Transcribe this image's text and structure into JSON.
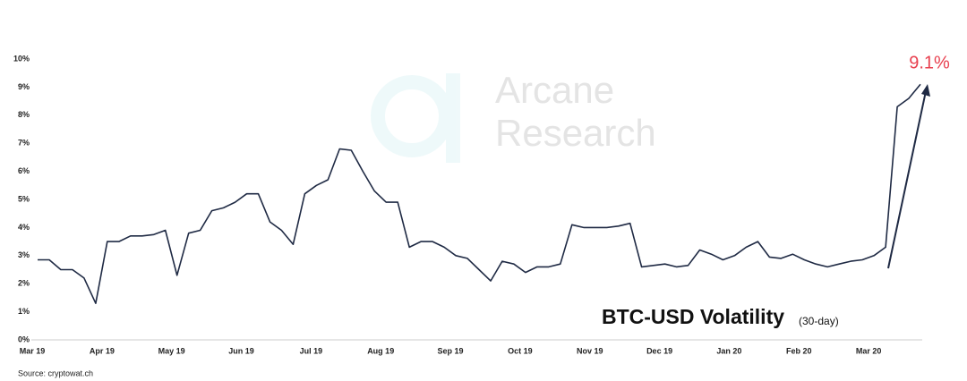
{
  "chart_data": {
    "type": "line",
    "title": "BTC-USD Volatility",
    "subtitle": "(30-day)",
    "source": "Source: cryptowat.ch",
    "annotation": "9.1%",
    "watermark": [
      "Arcane",
      "Research"
    ],
    "categories": [
      "Mar 19",
      null,
      null,
      null,
      null,
      null,
      "Apr 19",
      null,
      null,
      null,
      null,
      null,
      "May 19",
      null,
      null,
      null,
      null,
      null,
      "Jun 19",
      null,
      null,
      null,
      null,
      null,
      "Jul 19",
      null,
      null,
      null,
      null,
      null,
      "Aug 19",
      null,
      null,
      null,
      null,
      null,
      "Sep 19",
      null,
      null,
      null,
      null,
      null,
      "Oct 19",
      null,
      null,
      null,
      null,
      null,
      "Nov 19",
      null,
      null,
      null,
      null,
      null,
      "Dec 19",
      null,
      null,
      null,
      null,
      null,
      "Jan 20",
      null,
      null,
      null,
      null,
      null,
      "Feb 20",
      null,
      null,
      null,
      null,
      null,
      "Mar 20",
      null,
      null,
      null,
      null
    ],
    "series": [
      {
        "name": "BTC-USD",
        "color": "#1f2a44",
        "values": [
          2.85,
          2.85,
          2.5,
          2.5,
          2.2,
          1.3,
          3.5,
          3.5,
          3.7,
          3.7,
          3.75,
          3.9,
          2.3,
          3.8,
          3.9,
          4.6,
          4.7,
          4.9,
          5.2,
          5.2,
          4.2,
          3.9,
          3.4,
          5.2,
          5.5,
          5.7,
          6.8,
          6.75,
          6.0,
          5.3,
          4.9,
          4.9,
          3.3,
          3.5,
          3.5,
          3.3,
          3.0,
          2.9,
          2.5,
          2.1,
          2.8,
          2.7,
          2.4,
          2.6,
          2.6,
          2.7,
          4.1,
          4.0,
          4.0,
          4.0,
          4.05,
          4.15,
          2.6,
          2.65,
          2.7,
          2.6,
          2.65,
          3.2,
          3.05,
          2.85,
          3.0,
          3.3,
          3.5,
          2.95,
          2.9,
          3.05,
          2.85,
          2.7,
          2.6,
          2.7,
          2.8,
          2.85,
          3.0,
          3.3,
          8.3,
          8.6,
          9.1
        ]
      }
    ],
    "ylim": [
      0,
      10
    ],
    "yticks": [
      {
        "value": 0,
        "label": "0%"
      },
      {
        "value": 1,
        "label": "1%"
      },
      {
        "value": 2,
        "label": "2%"
      },
      {
        "value": 3,
        "label": "3%"
      },
      {
        "value": 4,
        "label": "4%"
      },
      {
        "value": 5,
        "label": "5%"
      },
      {
        "value": 6,
        "label": "6%"
      },
      {
        "value": 7,
        "label": "7%"
      },
      {
        "value": 8,
        "label": "8%"
      },
      {
        "value": 9,
        "label": "9%"
      },
      {
        "value": 10,
        "label": "10%"
      }
    ],
    "grid": false
  }
}
